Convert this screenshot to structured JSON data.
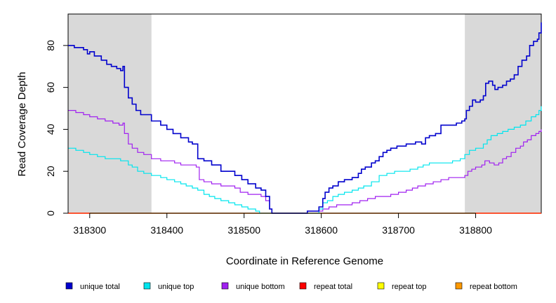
{
  "chart_data": {
    "type": "line",
    "title": "",
    "xlabel": "Coordinate in Reference Genome",
    "ylabel": "Read Coverage Depth",
    "xlim": [
      318272,
      318885
    ],
    "ylim": [
      0,
      95
    ],
    "xticks": [
      318300,
      318400,
      318500,
      318600,
      318700,
      318800
    ],
    "yticks": [
      0,
      20,
      40,
      60,
      80
    ],
    "shaded_regions": [
      [
        318272,
        318380
      ],
      [
        318786,
        318885
      ]
    ],
    "series": [
      {
        "name": "unique total",
        "color": "#0000cd",
        "points": [
          [
            318272,
            80
          ],
          [
            318280,
            79
          ],
          [
            318292,
            78
          ],
          [
            318297,
            76
          ],
          [
            318300,
            77
          ],
          [
            318306,
            75
          ],
          [
            318315,
            73
          ],
          [
            318322,
            71
          ],
          [
            318328,
            70
          ],
          [
            318335,
            69
          ],
          [
            318340,
            68
          ],
          [
            318343,
            70
          ],
          [
            318345,
            60
          ],
          [
            318350,
            55
          ],
          [
            318355,
            52
          ],
          [
            318360,
            49
          ],
          [
            318366,
            47
          ],
          [
            318372,
            47
          ],
          [
            318380,
            44
          ],
          [
            318392,
            42
          ],
          [
            318400,
            40
          ],
          [
            318408,
            38
          ],
          [
            318418,
            36
          ],
          [
            318428,
            34
          ],
          [
            318433,
            33
          ],
          [
            318440,
            26
          ],
          [
            318448,
            25
          ],
          [
            318458,
            23
          ],
          [
            318470,
            20
          ],
          [
            318480,
            20
          ],
          [
            318488,
            18
          ],
          [
            318497,
            16
          ],
          [
            318505,
            14
          ],
          [
            318515,
            12
          ],
          [
            318522,
            11
          ],
          [
            318528,
            8
          ],
          [
            318533,
            2
          ],
          [
            318536,
            0
          ],
          [
            318550,
            0
          ],
          [
            318562,
            0
          ],
          [
            318575,
            0
          ],
          [
            318582,
            1
          ],
          [
            318590,
            1
          ],
          [
            318597,
            3
          ],
          [
            318602,
            7
          ],
          [
            318605,
            10
          ],
          [
            318610,
            12
          ],
          [
            318615,
            13
          ],
          [
            318622,
            15
          ],
          [
            318630,
            16
          ],
          [
            318640,
            17
          ],
          [
            318648,
            19
          ],
          [
            318652,
            21
          ],
          [
            318657,
            22
          ],
          [
            318665,
            24
          ],
          [
            318670,
            25
          ],
          [
            318675,
            27
          ],
          [
            318680,
            29
          ],
          [
            318685,
            30
          ],
          [
            318690,
            31
          ],
          [
            318698,
            32
          ],
          [
            318710,
            33
          ],
          [
            318722,
            34
          ],
          [
            318730,
            33
          ],
          [
            318735,
            36
          ],
          [
            318740,
            37
          ],
          [
            318748,
            38
          ],
          [
            318755,
            42
          ],
          [
            318775,
            43
          ],
          [
            318782,
            44
          ],
          [
            318786,
            45
          ],
          [
            318788,
            49
          ],
          [
            318792,
            51
          ],
          [
            318796,
            54
          ],
          [
            318800,
            53
          ],
          [
            318806,
            54
          ],
          [
            318810,
            56
          ],
          [
            318813,
            62
          ],
          [
            318817,
            63
          ],
          [
            318822,
            61
          ],
          [
            318825,
            59
          ],
          [
            318829,
            60
          ],
          [
            318835,
            61
          ],
          [
            318840,
            63
          ],
          [
            318845,
            64
          ],
          [
            318850,
            66
          ],
          [
            318855,
            70
          ],
          [
            318860,
            73
          ],
          [
            318866,
            75
          ],
          [
            318870,
            80
          ],
          [
            318875,
            82
          ],
          [
            318880,
            83
          ],
          [
            318882,
            86
          ],
          [
            318885,
            91
          ]
        ]
      },
      {
        "name": "unique top",
        "color": "#00e5ee",
        "points": [
          [
            318272,
            31
          ],
          [
            318282,
            30
          ],
          [
            318292,
            29
          ],
          [
            318300,
            28
          ],
          [
            318310,
            27
          ],
          [
            318320,
            26
          ],
          [
            318330,
            26
          ],
          [
            318340,
            25
          ],
          [
            318350,
            23
          ],
          [
            318355,
            22
          ],
          [
            318362,
            20
          ],
          [
            318370,
            19
          ],
          [
            318380,
            18
          ],
          [
            318392,
            17
          ],
          [
            318400,
            16
          ],
          [
            318410,
            15
          ],
          [
            318418,
            14
          ],
          [
            318425,
            13
          ],
          [
            318433,
            12
          ],
          [
            318440,
            11
          ],
          [
            318448,
            9
          ],
          [
            318455,
            8
          ],
          [
            318462,
            7
          ],
          [
            318470,
            6
          ],
          [
            318480,
            5
          ],
          [
            318488,
            4
          ],
          [
            318497,
            3
          ],
          [
            318505,
            2
          ],
          [
            318515,
            1
          ],
          [
            318520,
            0
          ],
          [
            318536,
            0
          ],
          [
            318550,
            0
          ],
          [
            318575,
            0
          ],
          [
            318582,
            0
          ],
          [
            318590,
            0
          ],
          [
            318597,
            2
          ],
          [
            318602,
            5
          ],
          [
            318608,
            6
          ],
          [
            318615,
            8
          ],
          [
            318622,
            9
          ],
          [
            318630,
            10
          ],
          [
            318640,
            11
          ],
          [
            318648,
            12
          ],
          [
            318655,
            13
          ],
          [
            318665,
            15
          ],
          [
            318675,
            18
          ],
          [
            318685,
            19
          ],
          [
            318695,
            20
          ],
          [
            318705,
            20
          ],
          [
            318715,
            21
          ],
          [
            318725,
            22
          ],
          [
            318732,
            23
          ],
          [
            318740,
            24
          ],
          [
            318750,
            24
          ],
          [
            318760,
            24
          ],
          [
            318770,
            25
          ],
          [
            318780,
            26
          ],
          [
            318786,
            28
          ],
          [
            318792,
            30
          ],
          [
            318800,
            31
          ],
          [
            318810,
            33
          ],
          [
            318815,
            35
          ],
          [
            318820,
            37
          ],
          [
            318828,
            38
          ],
          [
            318835,
            39
          ],
          [
            318842,
            40
          ],
          [
            318850,
            41
          ],
          [
            318858,
            42
          ],
          [
            318865,
            44
          ],
          [
            318872,
            46
          ],
          [
            318878,
            47
          ],
          [
            318882,
            49
          ],
          [
            318885,
            51
          ]
        ]
      },
      {
        "name": "unique bottom",
        "color": "#a020f0",
        "points": [
          [
            318272,
            49
          ],
          [
            318282,
            48
          ],
          [
            318292,
            47
          ],
          [
            318300,
            46
          ],
          [
            318310,
            45
          ],
          [
            318320,
            44
          ],
          [
            318330,
            43
          ],
          [
            318338,
            42
          ],
          [
            318343,
            43
          ],
          [
            318345,
            38
          ],
          [
            318350,
            33
          ],
          [
            318355,
            31
          ],
          [
            318362,
            29
          ],
          [
            318370,
            28
          ],
          [
            318380,
            26
          ],
          [
            318392,
            25
          ],
          [
            318400,
            25
          ],
          [
            318410,
            24
          ],
          [
            318418,
            23
          ],
          [
            318428,
            23
          ],
          [
            318438,
            22
          ],
          [
            318442,
            16
          ],
          [
            318448,
            15
          ],
          [
            318458,
            14
          ],
          [
            318470,
            13
          ],
          [
            318480,
            13
          ],
          [
            318488,
            12
          ],
          [
            318495,
            10
          ],
          [
            318505,
            9
          ],
          [
            318515,
            9
          ],
          [
            318522,
            8
          ],
          [
            318528,
            6
          ],
          [
            318533,
            2
          ],
          [
            318536,
            0
          ],
          [
            318550,
            0
          ],
          [
            318575,
            0
          ],
          [
            318582,
            1
          ],
          [
            318590,
            1
          ],
          [
            318597,
            1
          ],
          [
            318602,
            2
          ],
          [
            318610,
            3
          ],
          [
            318620,
            4
          ],
          [
            318630,
            4
          ],
          [
            318640,
            5
          ],
          [
            318650,
            6
          ],
          [
            318660,
            7
          ],
          [
            318670,
            8
          ],
          [
            318680,
            8
          ],
          [
            318690,
            9
          ],
          [
            318700,
            10
          ],
          [
            318710,
            11
          ],
          [
            318718,
            12
          ],
          [
            318725,
            13
          ],
          [
            318735,
            14
          ],
          [
            318745,
            15
          ],
          [
            318755,
            16
          ],
          [
            318765,
            17
          ],
          [
            318775,
            17
          ],
          [
            318786,
            18
          ],
          [
            318790,
            20
          ],
          [
            318795,
            21
          ],
          [
            318800,
            22
          ],
          [
            318808,
            23
          ],
          [
            318812,
            25
          ],
          [
            318818,
            24
          ],
          [
            318824,
            23
          ],
          [
            318830,
            24
          ],
          [
            318835,
            26
          ],
          [
            318840,
            27
          ],
          [
            318846,
            29
          ],
          [
            318852,
            31
          ],
          [
            318858,
            32
          ],
          [
            318862,
            34
          ],
          [
            318867,
            35
          ],
          [
            318872,
            37
          ],
          [
            318878,
            38
          ],
          [
            318882,
            39
          ],
          [
            318885,
            40
          ]
        ]
      },
      {
        "name": "repeat total",
        "color": "#ff0000",
        "points": [
          [
            318272,
            0
          ],
          [
            318885,
            0
          ]
        ]
      },
      {
        "name": "repeat top",
        "color": "#ffff00",
        "points": [
          [
            318272,
            0
          ],
          [
            318885,
            0
          ]
        ]
      },
      {
        "name": "repeat bottom",
        "color": "#ff9900",
        "points": [
          [
            318272,
            0
          ],
          [
            318885,
            0
          ]
        ]
      }
    ],
    "legend": {
      "placement": "bottom",
      "entries": [
        {
          "label": "unique total",
          "color": "#0000cd"
        },
        {
          "label": "unique top",
          "color": "#00e5ee"
        },
        {
          "label": "unique bottom",
          "color": "#a020f0"
        },
        {
          "label": "repeat total",
          "color": "#ff0000"
        },
        {
          "label": "repeat top",
          "color": "#ffff00"
        },
        {
          "label": "repeat bottom",
          "color": "#ff9900"
        }
      ]
    },
    "colors": {
      "shade": "#d9d9d9",
      "axis": "#000000"
    }
  }
}
